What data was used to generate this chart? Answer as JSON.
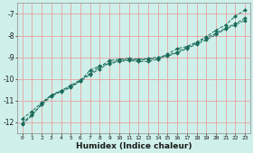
{
  "title": "",
  "xlabel": "Humidex (Indice chaleur)",
  "ylabel": "",
  "bg_color": "#cff0ea",
  "grid_color": "#e8a0a0",
  "line_color": "#1a6b5a",
  "xlim": [
    -0.5,
    23.5
  ],
  "ylim": [
    -12.5,
    -6.5
  ],
  "yticks": [
    -12,
    -11,
    -10,
    -9,
    -8,
    -7
  ],
  "xticks": [
    0,
    1,
    2,
    3,
    4,
    5,
    6,
    7,
    8,
    9,
    10,
    11,
    12,
    13,
    14,
    15,
    16,
    17,
    18,
    19,
    20,
    21,
    22,
    23
  ],
  "series1_x": [
    0,
    1,
    2,
    3,
    4,
    5,
    6,
    7,
    8,
    9,
    10,
    11,
    12,
    13,
    14,
    15,
    16,
    17,
    18,
    19,
    20,
    21,
    22,
    23
  ],
  "series1_y": [
    -11.85,
    -11.5,
    -11.1,
    -10.75,
    -10.55,
    -10.3,
    -10.05,
    -9.75,
    -9.45,
    -9.15,
    -9.1,
    -9.05,
    -9.1,
    -9.05,
    -9.0,
    -8.9,
    -8.75,
    -8.55,
    -8.35,
    -8.1,
    -7.9,
    -7.65,
    -7.45,
    -7.2
  ],
  "series2_x": [
    0,
    1,
    2,
    3,
    4,
    5,
    6,
    7,
    8,
    9,
    10,
    11,
    12,
    13,
    14,
    15,
    16,
    17,
    18,
    19,
    20,
    21,
    22,
    23
  ],
  "series2_y": [
    -12.05,
    -11.65,
    -11.2,
    -10.8,
    -10.6,
    -10.4,
    -10.1,
    -9.8,
    -9.55,
    -9.25,
    -9.15,
    -9.1,
    -9.15,
    -9.1,
    -9.05,
    -8.95,
    -8.8,
    -8.6,
    -8.4,
    -8.2,
    -7.95,
    -7.7,
    -7.5,
    -7.3
  ],
  "series3_x": [
    0,
    1,
    2,
    3,
    4,
    5,
    6,
    7,
    8,
    9,
    10,
    11,
    12,
    13,
    14,
    15,
    16,
    17,
    18,
    19,
    20,
    21,
    22,
    23
  ],
  "series3_y": [
    -12.1,
    -11.7,
    -11.15,
    -10.75,
    -10.55,
    -10.35,
    -10.1,
    -9.6,
    -9.4,
    -9.3,
    -9.2,
    -9.15,
    -9.2,
    -9.2,
    -9.1,
    -8.85,
    -8.6,
    -8.5,
    -8.3,
    -8.05,
    -7.75,
    -7.5,
    -7.1,
    -6.82
  ]
}
